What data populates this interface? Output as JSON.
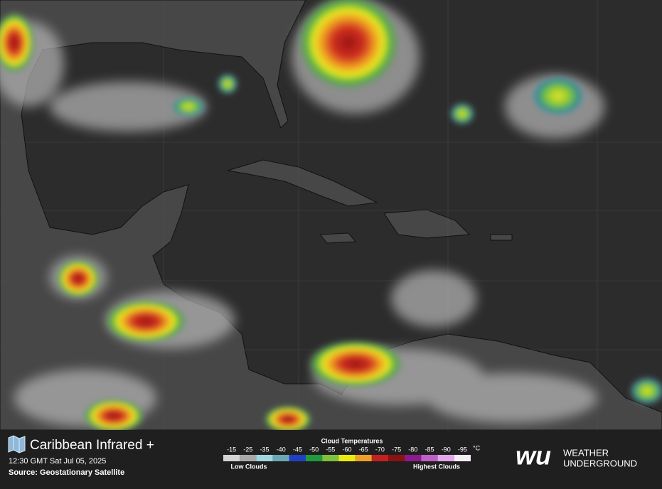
{
  "header": {
    "title": "Caribbean Infrared +",
    "timestamp": "12:30 GMT Sat Jul 05, 2025",
    "source": "Source: Geostationary Satellite"
  },
  "legend": {
    "title": "Cloud Temperatures",
    "unit": "°C",
    "ticks": [
      -15,
      -25,
      -35,
      -40,
      -45,
      -50,
      -55,
      -60,
      -65,
      -70,
      -75,
      -80,
      -85,
      -90,
      -95
    ],
    "colors": [
      "#d4d4d4",
      "#a8a8a8",
      "#9fd6e0",
      "#6aa8b4",
      "#1f3fc4",
      "#1f9a3c",
      "#7cc23c",
      "#eaea10",
      "#eda028",
      "#c42020",
      "#8a1212",
      "#8e1a8e",
      "#c060c4",
      "#e0a8e8",
      "#f6ecf6"
    ],
    "low_label": "Low Clouds",
    "high_label": "Highest Clouds"
  },
  "brand": {
    "logo": "wu",
    "line1": "WEATHER",
    "line2": "UNDERGROUND"
  }
}
